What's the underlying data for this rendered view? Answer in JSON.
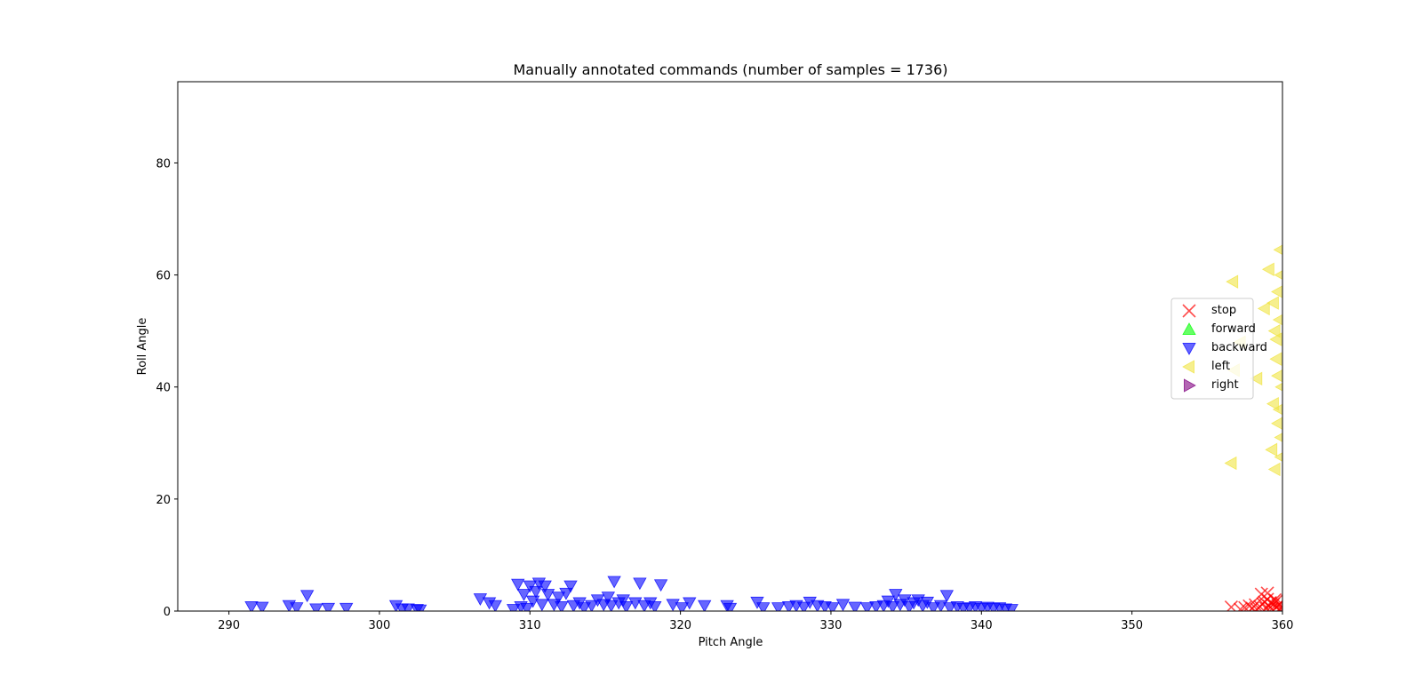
{
  "chart_data": {
    "type": "scatter",
    "title": "Manually annotated commands (number of samples = 1736)",
    "xlabel": "Pitch Angle",
    "ylabel": "Roll Angle",
    "xlim": [
      286.6,
      360
    ],
    "ylim": [
      0,
      94.5
    ],
    "xticks": [
      290,
      300,
      310,
      320,
      330,
      340,
      350,
      360
    ],
    "yticks": [
      0,
      20,
      40,
      60,
      80
    ],
    "grid": false,
    "legend_position": "center-right",
    "series": [
      {
        "name": "stop",
        "marker": "x",
        "color": "#ff0000",
        "points": [
          [
            356.6,
            0.7
          ],
          [
            357.2,
            0.3
          ],
          [
            357.5,
            0.6
          ],
          [
            357.8,
            0.9
          ],
          [
            358.0,
            0.5
          ],
          [
            358.2,
            1.1
          ],
          [
            358.3,
            0.3
          ],
          [
            358.5,
            0.8
          ],
          [
            358.6,
            3.0
          ],
          [
            358.7,
            1.3
          ],
          [
            358.9,
            0.5
          ],
          [
            359.0,
            3.2
          ],
          [
            359.1,
            0.9
          ],
          [
            359.2,
            1.5
          ],
          [
            359.3,
            0.4
          ],
          [
            359.4,
            1.2
          ],
          [
            359.5,
            2.0
          ],
          [
            359.6,
            0.7
          ],
          [
            359.7,
            1.0
          ],
          [
            359.8,
            0.4
          ],
          [
            359.9,
            1.4
          ],
          [
            359.95,
            0.6
          ],
          [
            359.6,
            1.8
          ],
          [
            359.0,
            2.1
          ],
          [
            358.8,
            1.6
          ]
        ]
      },
      {
        "name": "forward",
        "marker": "^",
        "color": "#00ff00",
        "points": []
      },
      {
        "name": "backward",
        "marker": "v",
        "color": "#0000ff",
        "points": [
          [
            291.5,
            0.8
          ],
          [
            292.2,
            0.7
          ],
          [
            294.0,
            1.0
          ],
          [
            294.5,
            0.6
          ],
          [
            295.2,
            2.8
          ],
          [
            295.8,
            0.4
          ],
          [
            296.6,
            0.5
          ],
          [
            297.8,
            0.5
          ],
          [
            301.1,
            1.0
          ],
          [
            301.5,
            0.4
          ],
          [
            301.9,
            0.4
          ],
          [
            302.5,
            0.3
          ],
          [
            302.7,
            0.2
          ],
          [
            306.7,
            2.2
          ],
          [
            307.3,
            1.5
          ],
          [
            307.7,
            1.0
          ],
          [
            308.9,
            0.3
          ],
          [
            309.2,
            4.8
          ],
          [
            309.4,
            0.8
          ],
          [
            309.6,
            3.0
          ],
          [
            309.8,
            0.5
          ],
          [
            310.0,
            4.5
          ],
          [
            310.2,
            1.8
          ],
          [
            310.4,
            3.5
          ],
          [
            310.6,
            5.0
          ],
          [
            310.8,
            1.2
          ],
          [
            311.0,
            4.5
          ],
          [
            311.2,
            3.0
          ],
          [
            311.6,
            1.2
          ],
          [
            311.9,
            2.5
          ],
          [
            312.1,
            0.8
          ],
          [
            312.4,
            3.2
          ],
          [
            312.7,
            4.5
          ],
          [
            312.9,
            1.0
          ],
          [
            313.3,
            1.5
          ],
          [
            313.6,
            0.6
          ],
          [
            314.1,
            1.0
          ],
          [
            314.5,
            2.0
          ],
          [
            314.9,
            1.2
          ],
          [
            315.2,
            2.5
          ],
          [
            315.4,
            1.0
          ],
          [
            315.6,
            5.3
          ],
          [
            315.9,
            1.5
          ],
          [
            316.2,
            2.0
          ],
          [
            316.4,
            0.8
          ],
          [
            317.0,
            1.5
          ],
          [
            317.3,
            5.0
          ],
          [
            317.6,
            1.0
          ],
          [
            318.0,
            1.5
          ],
          [
            318.3,
            0.8
          ],
          [
            318.7,
            4.7
          ],
          [
            319.5,
            1.2
          ],
          [
            320.1,
            0.6
          ],
          [
            320.6,
            1.5
          ],
          [
            321.6,
            1.0
          ],
          [
            323.1,
            1.0
          ],
          [
            323.3,
            0.5
          ],
          [
            325.1,
            1.6
          ],
          [
            325.5,
            0.6
          ],
          [
            326.5,
            0.6
          ],
          [
            327.2,
            0.8
          ],
          [
            327.7,
            1.0
          ],
          [
            328.2,
            0.7
          ],
          [
            328.6,
            1.6
          ],
          [
            329.1,
            1.0
          ],
          [
            329.6,
            0.8
          ],
          [
            330.1,
            0.6
          ],
          [
            330.8,
            1.2
          ],
          [
            331.6,
            0.7
          ],
          [
            332.4,
            0.6
          ],
          [
            333.0,
            0.8
          ],
          [
            333.5,
            1.0
          ],
          [
            333.8,
            1.8
          ],
          [
            334.1,
            0.8
          ],
          [
            334.3,
            3.0
          ],
          [
            334.6,
            1.2
          ],
          [
            334.9,
            2.0
          ],
          [
            335.2,
            0.8
          ],
          [
            335.5,
            1.5
          ],
          [
            335.8,
            2.0
          ],
          [
            336.1,
            1.0
          ],
          [
            336.4,
            1.6
          ],
          [
            336.8,
            0.6
          ],
          [
            337.3,
            1.0
          ],
          [
            337.7,
            2.8
          ],
          [
            337.9,
            0.6
          ],
          [
            338.4,
            0.8
          ],
          [
            338.8,
            0.5
          ],
          [
            339.2,
            0.6
          ],
          [
            339.6,
            0.8
          ],
          [
            340.0,
            0.5
          ],
          [
            340.4,
            0.7
          ],
          [
            340.8,
            0.5
          ],
          [
            341.2,
            0.6
          ],
          [
            341.6,
            0.4
          ],
          [
            342.0,
            0.3
          ]
        ]
      },
      {
        "name": "left",
        "marker": "<",
        "color": "#f0e442",
        "points": [
          [
            356.7,
            58.8
          ],
          [
            356.6,
            26.4
          ],
          [
            356.8,
            43.0
          ],
          [
            357.2,
            48.0
          ],
          [
            358.3,
            41.5
          ],
          [
            358.8,
            54.0
          ],
          [
            359.1,
            61.0
          ],
          [
            359.3,
            28.8
          ],
          [
            359.4,
            37.0
          ],
          [
            359.5,
            25.3
          ],
          [
            359.6,
            45.0
          ],
          [
            359.7,
            33.5
          ],
          [
            359.8,
            52.0
          ],
          [
            359.85,
            64.5
          ],
          [
            359.9,
            31.0
          ],
          [
            359.95,
            40.0
          ],
          [
            359.7,
            57.0
          ],
          [
            359.6,
            48.5
          ],
          [
            359.8,
            36.0
          ],
          [
            359.9,
            27.5
          ],
          [
            359.5,
            50.0
          ],
          [
            359.4,
            55.0
          ],
          [
            359.9,
            60.0
          ],
          [
            359.7,
            42.0
          ]
        ]
      },
      {
        "name": "right",
        "marker": ">",
        "color": "#800080",
        "points": []
      }
    ]
  }
}
